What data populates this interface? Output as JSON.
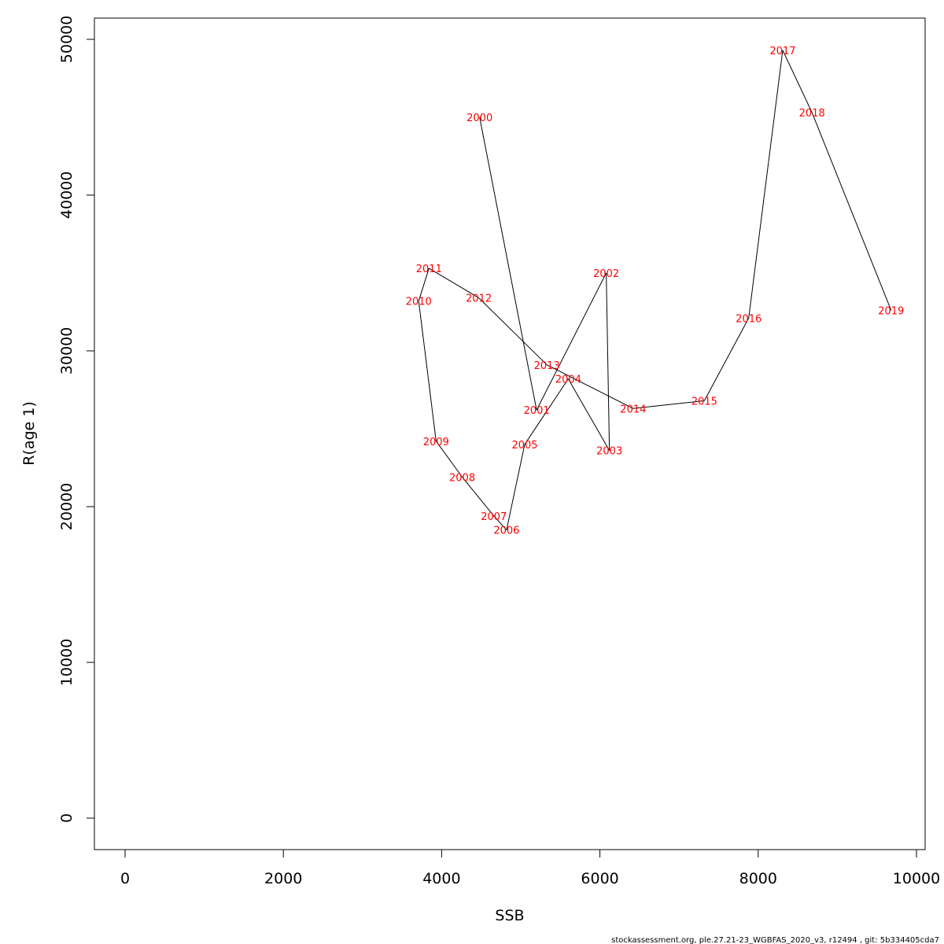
{
  "chart_data": {
    "type": "line",
    "xlabel": "SSB",
    "ylabel": "R(age 1)",
    "xlim": [
      0,
      10000
    ],
    "ylim": [
      0,
      50000
    ],
    "x_ticks": [
      0,
      2000,
      4000,
      6000,
      8000,
      10000
    ],
    "y_ticks": [
      0,
      10000,
      20000,
      30000,
      40000,
      50000
    ],
    "line_color": "#000000",
    "label_color": "#ff0000",
    "points": [
      {
        "label": "2000",
        "x": 4480,
        "y": 45000
      },
      {
        "label": "2001",
        "x": 5200,
        "y": 26200
      },
      {
        "label": "2002",
        "x": 6080,
        "y": 35000
      },
      {
        "label": "2003",
        "x": 6120,
        "y": 23600
      },
      {
        "label": "2004",
        "x": 5600,
        "y": 28200
      },
      {
        "label": "2005",
        "x": 5050,
        "y": 24000
      },
      {
        "label": "2006",
        "x": 4820,
        "y": 18500
      },
      {
        "label": "2007",
        "x": 4660,
        "y": 19400
      },
      {
        "label": "2008",
        "x": 4260,
        "y": 21900
      },
      {
        "label": "2009",
        "x": 3930,
        "y": 24200
      },
      {
        "label": "2010",
        "x": 3710,
        "y": 33200
      },
      {
        "label": "2011",
        "x": 3840,
        "y": 35300
      },
      {
        "label": "2012",
        "x": 4470,
        "y": 33400
      },
      {
        "label": "2013",
        "x": 5330,
        "y": 29100
      },
      {
        "label": "2014",
        "x": 6420,
        "y": 26300
      },
      {
        "label": "2015",
        "x": 7320,
        "y": 26800
      },
      {
        "label": "2016",
        "x": 7880,
        "y": 32100
      },
      {
        "label": "2017",
        "x": 8310,
        "y": 49300
      },
      {
        "label": "2018",
        "x": 8680,
        "y": 45300
      },
      {
        "label": "2019",
        "x": 9680,
        "y": 32600
      }
    ]
  },
  "footer": "stockassessment.org, ple.27.21-23_WGBFAS_2020_v3, r12494 , git: 5b334405cda7"
}
